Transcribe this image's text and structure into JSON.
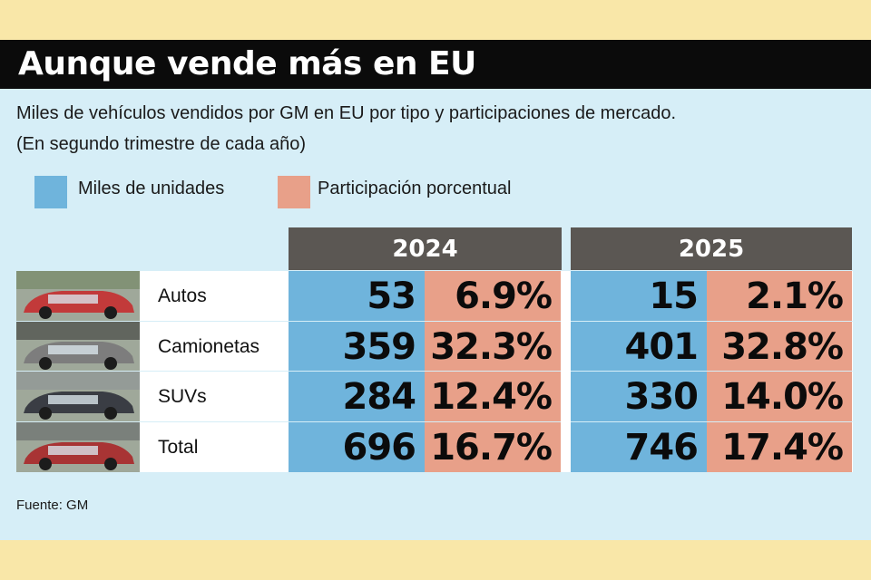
{
  "header": {
    "title": "Aunque vende más en EU",
    "subtitle_line1": "Miles de vehículos vendidos por GM en EU por tipo y participaciones de mercado.",
    "subtitle_line2": "(En segundo trimestre de cada año)"
  },
  "legend": [
    {
      "label": "Miles de unidades",
      "color": "#6fb4dc"
    },
    {
      "label": "Participación porcentual",
      "color": "#e8a089"
    }
  ],
  "colors": {
    "header_bg": "#5b5753",
    "panel_bg": "#d6eef7",
    "outer_bg": "#f9e7a8",
    "title_bar": "#0b0b0b"
  },
  "chart_data": {
    "type": "table",
    "columns": [
      "2024",
      "2025"
    ],
    "metrics": [
      "Miles de unidades",
      "Participación porcentual"
    ],
    "rows": [
      {
        "label": "Autos",
        "icon": "red-sedan-photo",
        "values": {
          "2024": {
            "units": "53",
            "share": "6.9%"
          },
          "2025": {
            "units": "15",
            "share": "2.1%"
          }
        }
      },
      {
        "label": "Camionetas",
        "icon": "pickup-truck-photo",
        "values": {
          "2024": {
            "units": "359",
            "share": "32.3%"
          },
          "2025": {
            "units": "401",
            "share": "32.8%"
          }
        }
      },
      {
        "label": "SUVs",
        "icon": "suv-photo",
        "values": {
          "2024": {
            "units": "284",
            "share": "12.4%"
          },
          "2025": {
            "units": "330",
            "share": "14.0%"
          }
        }
      },
      {
        "label": "Total",
        "icon": "vehicles-group-photo",
        "values": {
          "2024": {
            "units": "696",
            "share": "16.7%"
          },
          "2025": {
            "units": "746",
            "share": "17.4%"
          }
        }
      }
    ]
  },
  "source": "Fuente: GM"
}
